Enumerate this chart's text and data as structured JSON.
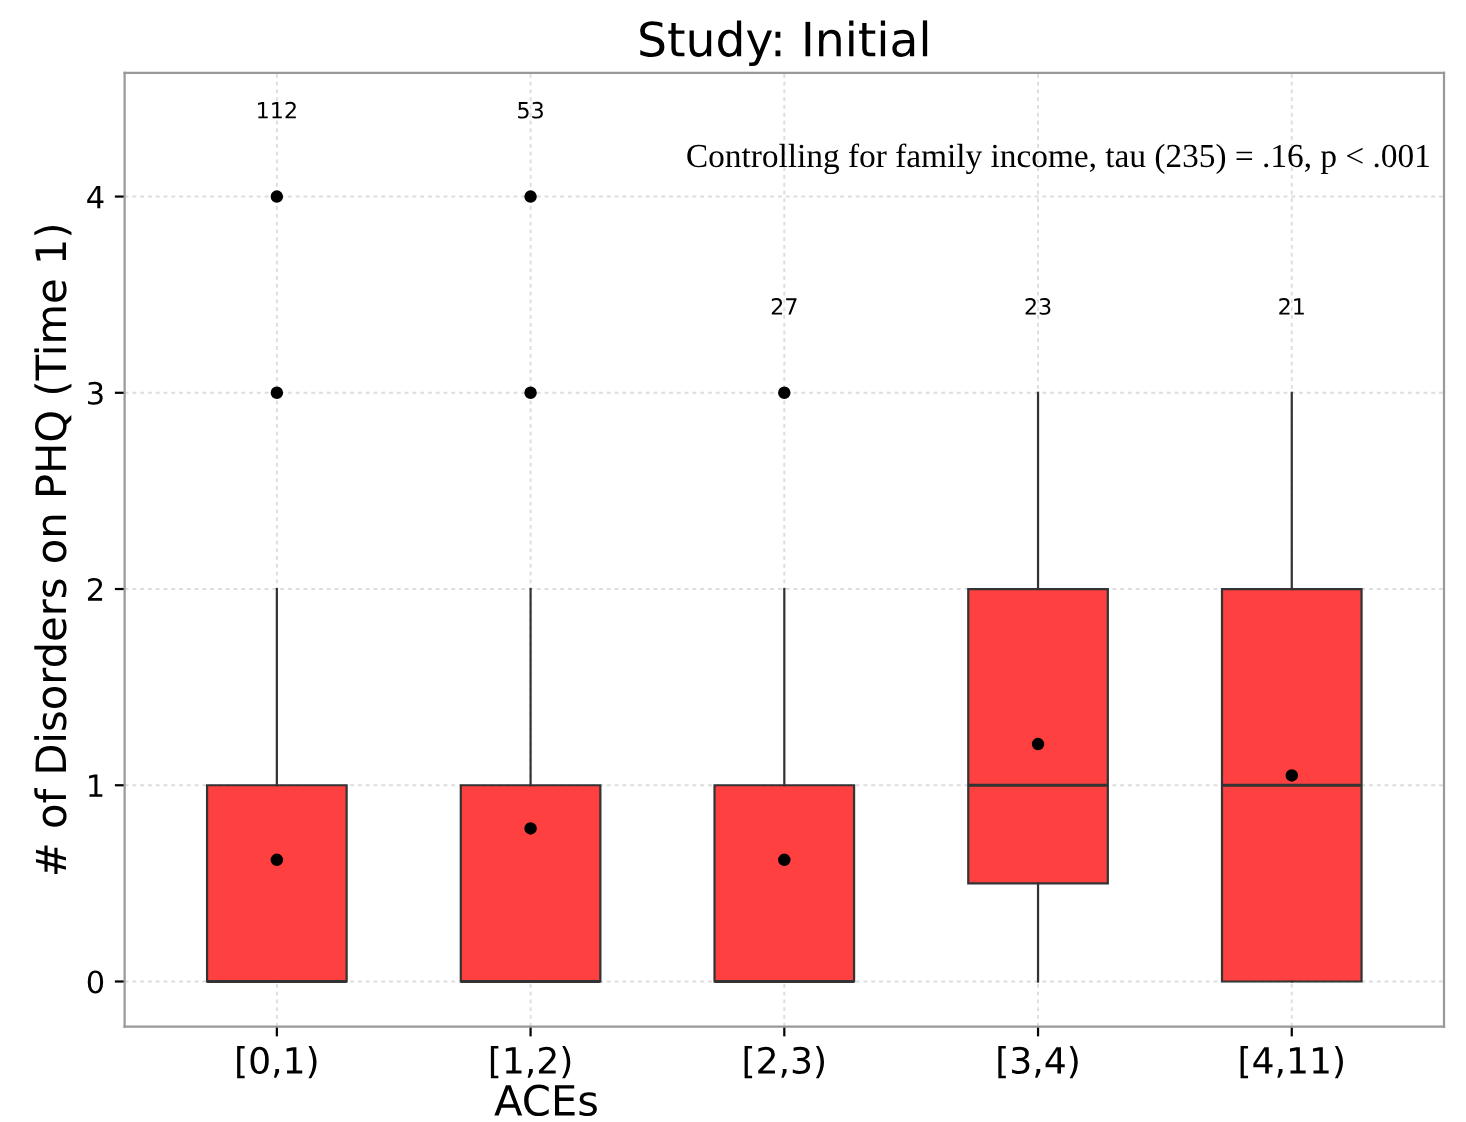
{
  "chart_data": {
    "type": "box",
    "title": "Study: Initial",
    "xlabel": "ACEs",
    "ylabel": "# of Disorders on PHQ (Time 1)",
    "categories": [
      "[0,1)",
      "[1,2)",
      "[2,3)",
      "[3,4)",
      "[4,11)"
    ],
    "series": [
      {
        "color": "#ff4040",
        "boxes": [
          {
            "low": 0,
            "q1": 0,
            "median": 0,
            "q3": 1,
            "high": 2,
            "mean": 0.62,
            "outliers": [
              3,
              4
            ]
          },
          {
            "low": 0,
            "q1": 0,
            "median": 0,
            "q3": 1,
            "high": 2,
            "mean": 0.78,
            "outliers": [
              3,
              4
            ]
          },
          {
            "low": 0,
            "q1": 0,
            "median": 0,
            "q3": 1,
            "high": 2,
            "mean": 0.62,
            "outliers": [
              3
            ]
          },
          {
            "low": 0,
            "q1": 0.5,
            "median": 1,
            "q3": 2,
            "high": 3,
            "mean": 1.21
          },
          {
            "low": 0,
            "q1": 0,
            "median": 1,
            "q3": 2,
            "high": 3,
            "mean": 1.05
          }
        ]
      }
    ],
    "ylim": [
      -0.23,
      4.63
    ],
    "yticks": [
      0,
      1,
      2,
      3,
      4
    ],
    "grid": true,
    "annotations": [
      "112",
      "53",
      "27",
      "23",
      "21",
      "Controlling for family income, tau (235) = .16, p < .001"
    ]
  }
}
